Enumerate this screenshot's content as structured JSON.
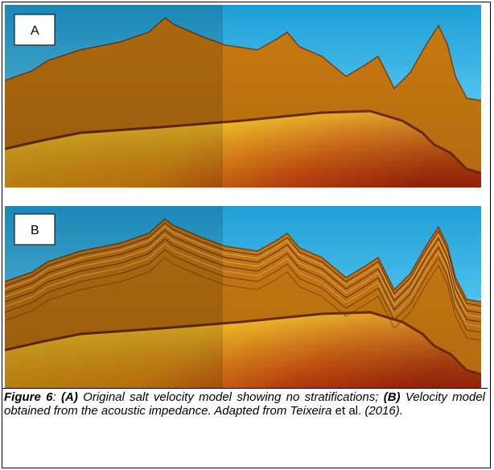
{
  "figure": {
    "panels": [
      {
        "label": "A"
      },
      {
        "label": "B"
      }
    ]
  },
  "caption": {
    "label": "Figure 6",
    "sep": ":",
    "a_tag": "(A)",
    "a_text": "Original salt velocity model showing no stratifications;",
    "b_tag": "(B)",
    "b_text": "Velocity model obtained from the acoustic impedance. Adapted from Teixeira",
    "etal": "et al.",
    "year": "(2016)."
  }
}
